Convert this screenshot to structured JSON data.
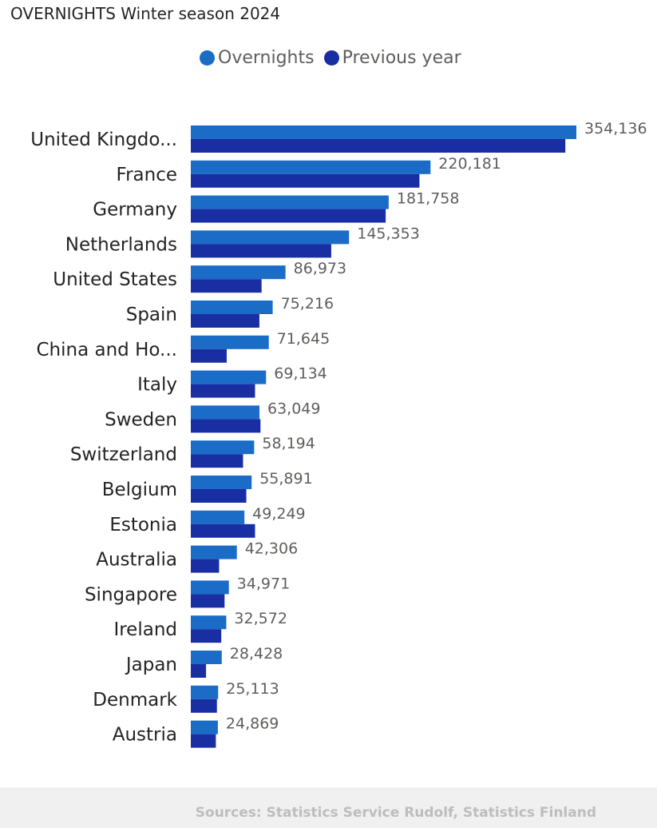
{
  "chart_data": {
    "type": "bar",
    "orientation": "horizontal",
    "title": "OVERNIGHTS Winter season 2024",
    "categories": [
      "United Kingdo...",
      "France",
      "Germany",
      "Netherlands",
      "United States",
      "Spain",
      "China and Ho...",
      "Italy",
      "Sweden",
      "Switzerland",
      "Belgium",
      "Estonia",
      "Australia",
      "Singapore",
      "Ireland",
      "Japan",
      "Denmark",
      "Austria"
    ],
    "series": [
      {
        "name": "Overnights",
        "color": "#1a6cc7",
        "values": [
          354136,
          220181,
          181758,
          145353,
          86973,
          75216,
          71645,
          69134,
          63049,
          58194,
          55891,
          49249,
          42306,
          34971,
          32572,
          28428,
          25113,
          24869
        ]
      },
      {
        "name": "Previous year",
        "color": "#1a2ea3",
        "values": [
          344000,
          210000,
          179000,
          129000,
          65000,
          63000,
          33000,
          59000,
          64000,
          48000,
          51000,
          59000,
          26000,
          31000,
          28000,
          14000,
          24000,
          23000
        ]
      }
    ],
    "data_labels": [
      "354,136",
      "220,181",
      "181,758",
      "145,353",
      "86,973",
      "75,216",
      "71,645",
      "69,134",
      "63,049",
      "58,194",
      "55,891",
      "49,249",
      "42,306",
      "34,971",
      "32,572",
      "28,428",
      "25,113",
      "24,869"
    ],
    "xlim": [
      0,
      354136
    ],
    "grid": false,
    "legend_position": "top"
  },
  "footer": {
    "source": "Sources: Statistics Service Rudolf, Statistics Finland"
  }
}
